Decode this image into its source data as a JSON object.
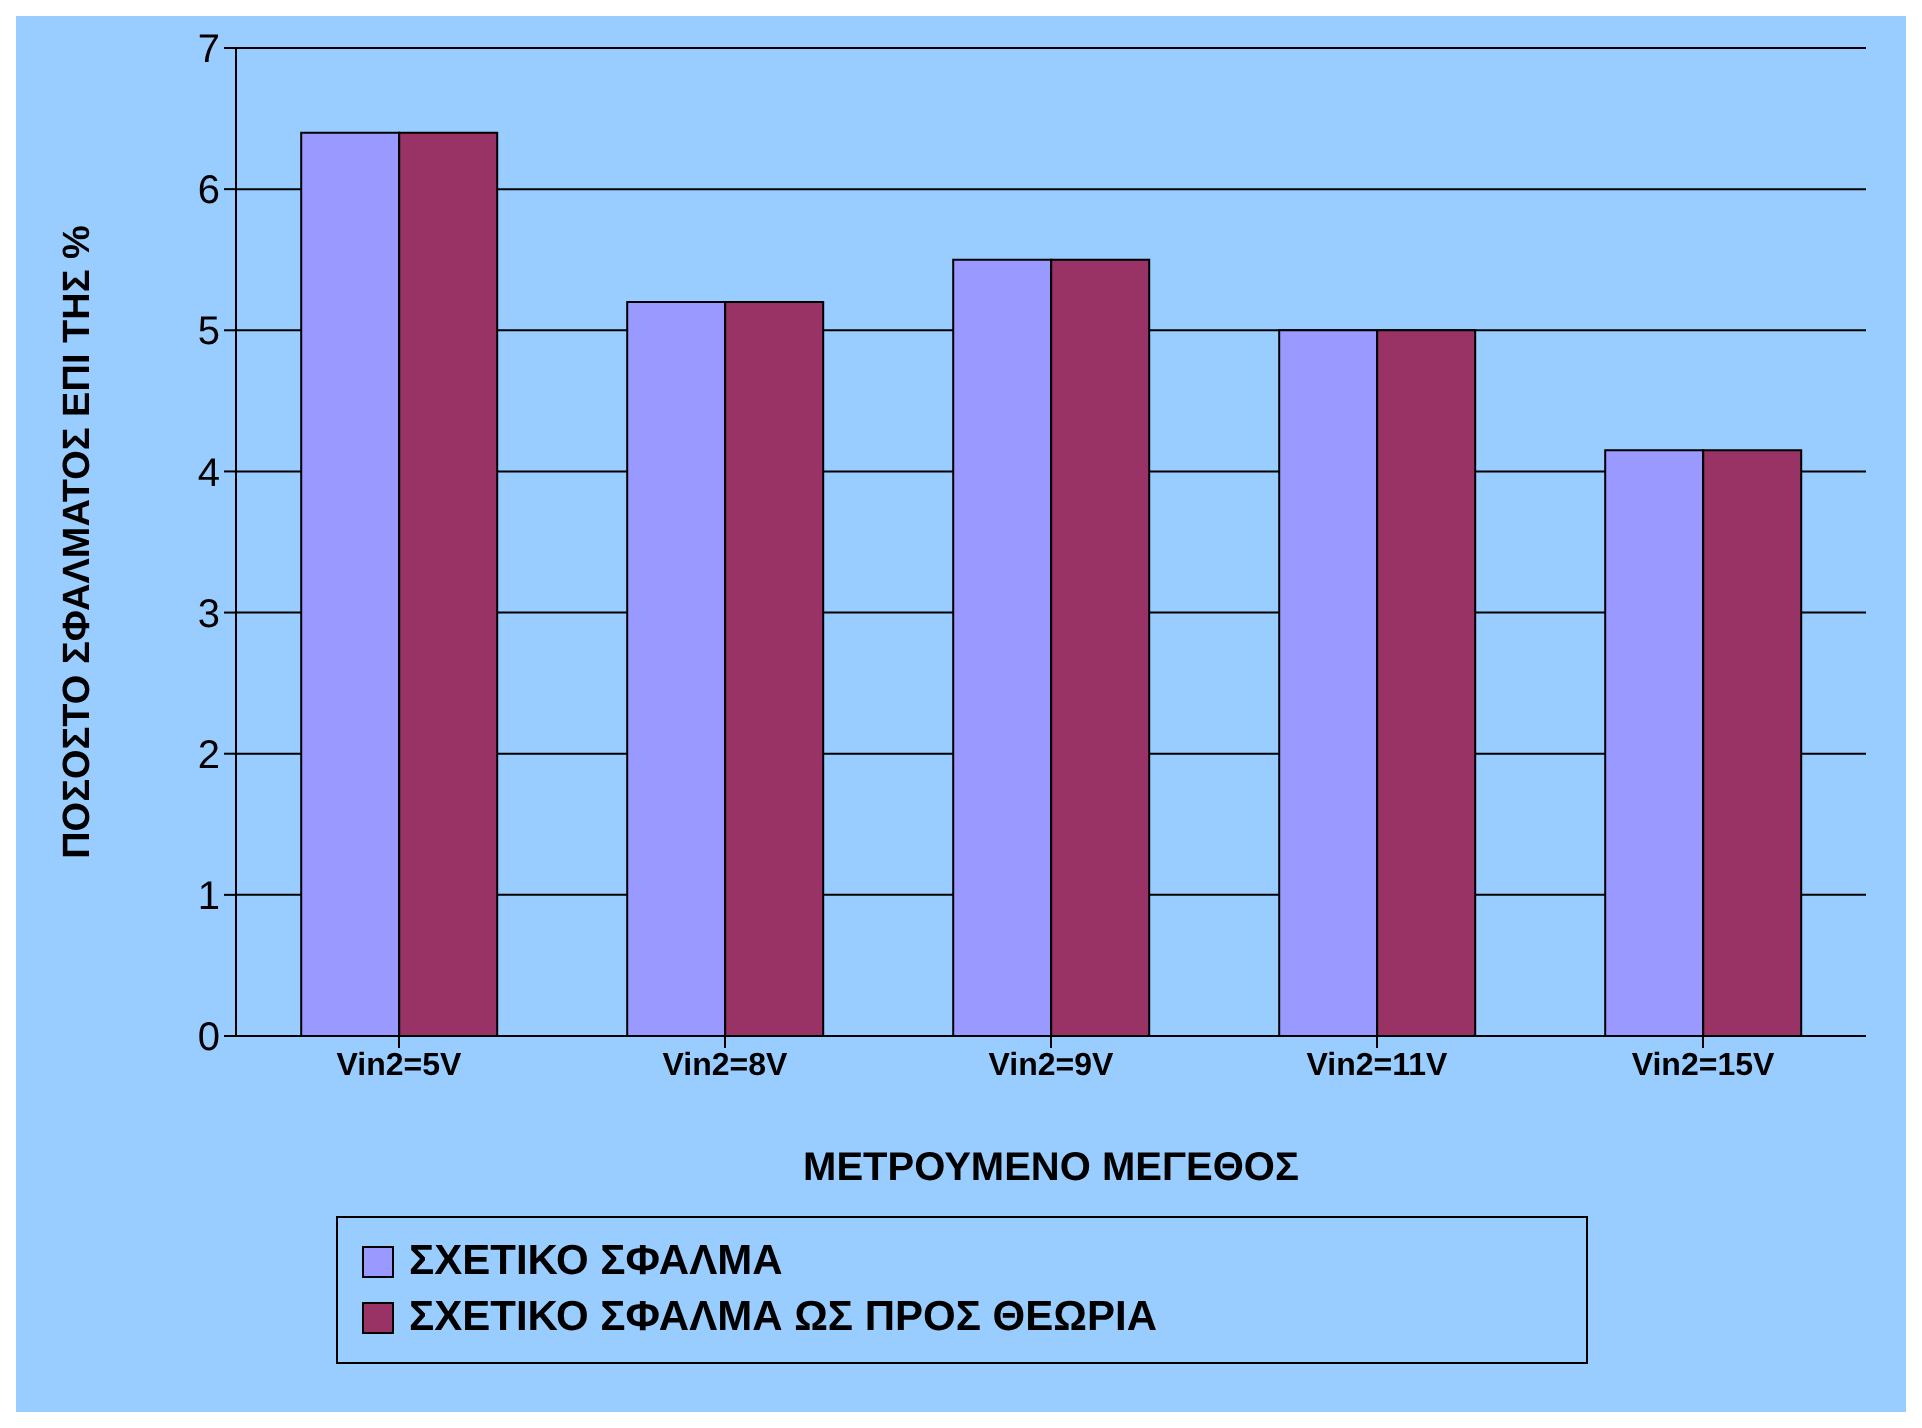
{
  "chart_data": {
    "type": "bar",
    "xlabel": "ΜΕΤΡΟΥΜΕΝΟ ΜΕΓΕΘΟΣ",
    "ylabel": "ΠΟΣΟΣΤΟ ΣΦΑΛΜΑΤΟΣ ΕΠΙ ΤΗΣ %",
    "categories": [
      "Vin2=5V",
      "Vin2=8V",
      "Vin2=9V",
      "Vin2=11V",
      "Vin2=15V"
    ],
    "series": [
      {
        "name": "ΣΧΕΤΙΚΟ ΣΦΑΛΜΑ",
        "color": "#9999ff",
        "values": [
          6.4,
          5.2,
          5.5,
          5.0,
          4.15
        ]
      },
      {
        "name": "ΣΧΕΤΙΚΟ ΣΦΑΛΜΑ ΩΣ ΠΡΟΣ ΘΕΩΡΙΑ",
        "color": "#993366",
        "values": [
          6.4,
          5.2,
          5.5,
          5.0,
          4.15
        ]
      }
    ],
    "ylim": [
      0,
      7
    ],
    "yticks": [
      0,
      1,
      2,
      3,
      4,
      5,
      6,
      7
    ],
    "grid": "y",
    "legend": "bottom"
  }
}
